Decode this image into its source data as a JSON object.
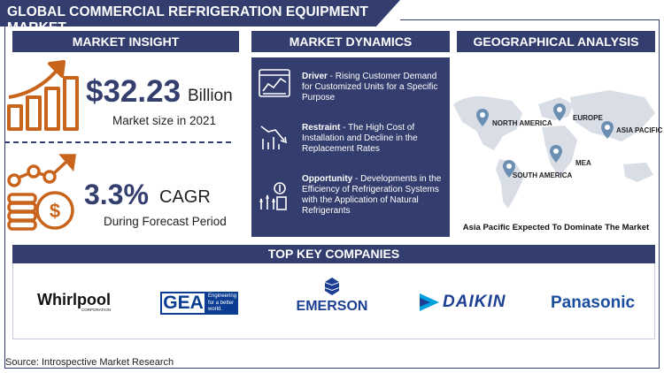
{
  "title": "GLOBAL COMMERCIAL REFRIGERATION EQUIPMENT MARKET",
  "market_insight": {
    "heading": "MARKET INSIGHT",
    "market_size_value": "$32.23",
    "market_size_unit": "Billion",
    "market_size_label": "Market size in 2021",
    "cagr_value": "3.3%",
    "cagr_label": "CAGR",
    "cagr_period": "During Forecast Period"
  },
  "market_dynamics": {
    "heading": "MARKET DYNAMICS",
    "items": [
      {
        "label": "Driver",
        "text": " - Rising Customer Demand for Customized Units for a Specific Purpose",
        "icon": "dashboard-chart-icon"
      },
      {
        "label": "Restraint",
        "text": " - The High Cost of Installation and Decline in the Replacement Rates",
        "icon": "declining-chart-icon"
      },
      {
        "label": "Opportunity",
        "text": " - Developments in the Efficiency of Refrigeration Systems with the Application of Natural Refrigerants",
        "icon": "growth-idea-icon"
      }
    ]
  },
  "geo": {
    "heading": "GEOGRAPHICAL ANALYSIS",
    "regions": [
      "NORTH AMERICA",
      "EUROPE",
      "ASIA PACIFIC",
      "MEA",
      "SOUTH AMERICA"
    ],
    "caption": "Asia Pacific Expected To Dominate The Market"
  },
  "companies": {
    "heading": "TOP KEY COMPANIES",
    "whirlpool": "Whirlpool",
    "whirlpool_sub": "CORPORATION",
    "gea": "GEA",
    "gea_tag": [
      "Engineering",
      "for a better",
      "world."
    ],
    "emerson": "EMERSON",
    "daikin": "DAIKIN",
    "panasonic": "Panasonic"
  },
  "source": "Source: Introspective Market Research",
  "colors": {
    "navy": "#333e6e",
    "orange": "#c8641c",
    "map_gray": "#d9dde6",
    "pin_blue": "#6b8fb3"
  }
}
